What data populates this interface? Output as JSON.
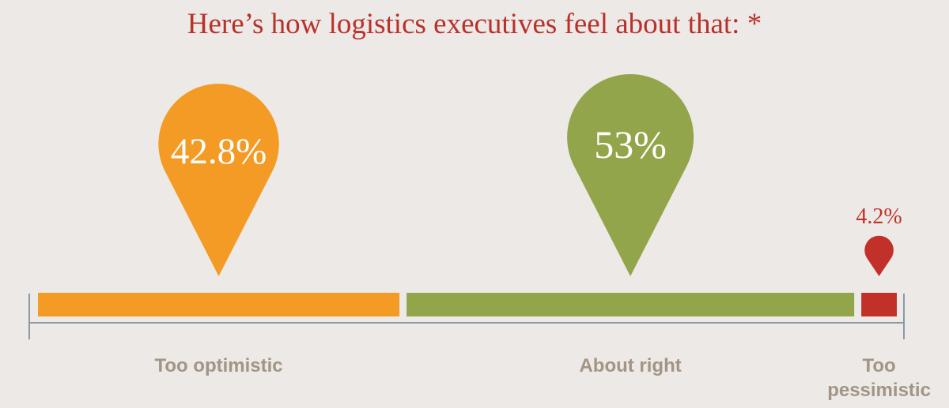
{
  "chart_data": {
    "type": "stacked-bar-pins",
    "title": "Here’s how logistics executives feel about that: *",
    "categories": [
      "Too optimistic",
      "About right",
      "Too pessimistic"
    ],
    "values": [
      42.8,
      53,
      4.2
    ],
    "value_labels": [
      "42.8%",
      "53%",
      "4.2%"
    ],
    "colors": [
      "#f39b25",
      "#93a54a",
      "#c1312a"
    ]
  }
}
